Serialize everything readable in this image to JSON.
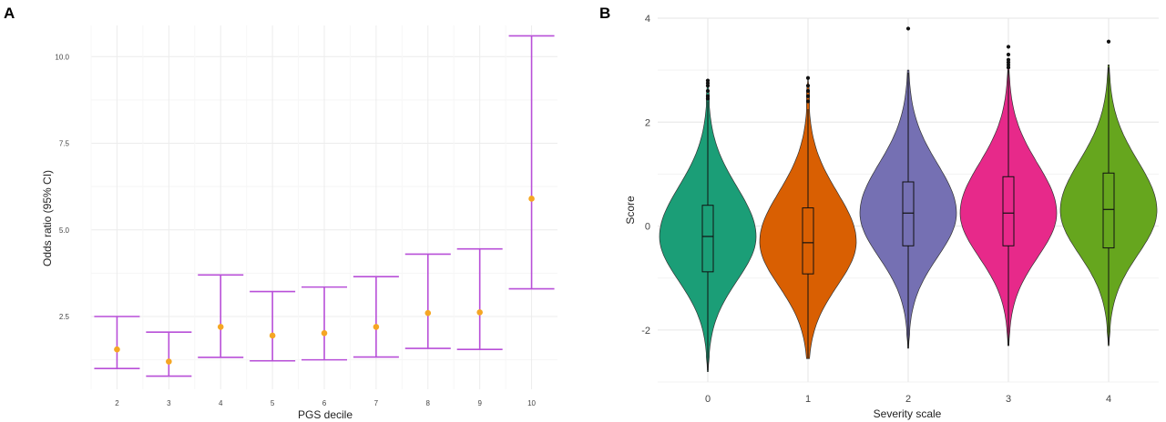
{
  "panels": {
    "a_label": "A",
    "b_label": "B"
  },
  "chart_data": [
    {
      "type": "errorbar",
      "panel": "A",
      "title": "",
      "xlabel": "PGS decile",
      "ylabel": "Odds ratio (95% CI)",
      "categories": [
        "2",
        "3",
        "4",
        "5",
        "6",
        "7",
        "8",
        "9",
        "10"
      ],
      "estimates": [
        1.55,
        1.2,
        2.2,
        1.95,
        2.02,
        2.2,
        2.6,
        2.62,
        5.9
      ],
      "ci_lower": [
        1.0,
        0.78,
        1.32,
        1.22,
        1.25,
        1.33,
        1.58,
        1.55,
        3.3
      ],
      "ci_upper": [
        2.5,
        2.05,
        3.7,
        3.22,
        3.35,
        3.65,
        4.3,
        4.45,
        10.6
      ],
      "yticks": [
        "2.5",
        "5.0",
        "7.5",
        "10.0"
      ],
      "ylim": [
        0.4,
        10.9
      ],
      "grid": true,
      "colors": {
        "errorbar": "#b84fd8",
        "point": "#f5a623"
      }
    },
    {
      "type": "violin",
      "panel": "B",
      "title": "",
      "xlabel": "Severity scale",
      "ylabel": "Score",
      "categories": [
        "0",
        "1",
        "2",
        "3",
        "4"
      ],
      "colors": [
        "#1b9e77",
        "#d95f02",
        "#7570b3",
        "#e7298a",
        "#66a61e"
      ],
      "ylim": [
        -3.0,
        4.0
      ],
      "yticks": [
        "-2",
        "0",
        "2",
        "4"
      ],
      "grid": true,
      "violins": [
        {
          "center": -0.2,
          "min": -2.8,
          "max": 2.8,
          "mode": -0.2
        },
        {
          "center": -0.3,
          "min": -2.55,
          "max": 2.85,
          "mode": -0.3
        },
        {
          "center": 0.25,
          "min": -2.35,
          "max": 3.0,
          "mode": 0.25
        },
        {
          "center": 0.25,
          "min": -2.3,
          "max": 3.05,
          "mode": 0.25
        },
        {
          "center": 0.3,
          "min": -2.3,
          "max": 3.1,
          "mode": 0.3
        }
      ],
      "boxplots": [
        {
          "q1": -0.88,
          "median": -0.2,
          "q3": 0.4,
          "whisker_low": -2.78,
          "whisker_high": 2.4
        },
        {
          "q1": -0.92,
          "median": -0.32,
          "q3": 0.35,
          "whisker_low": -2.55,
          "whisker_high": 2.25
        },
        {
          "q1": -0.38,
          "median": 0.25,
          "q3": 0.85,
          "whisker_low": -2.35,
          "whisker_high": 2.95
        },
        {
          "q1": -0.38,
          "median": 0.25,
          "q3": 0.95,
          "whisker_low": -2.3,
          "whisker_high": 3.0
        },
        {
          "q1": -0.42,
          "median": 0.32,
          "q3": 1.02,
          "whisker_low": -2.28,
          "whisker_high": 3.05
        }
      ],
      "outliers": [
        [
          2.45,
          2.5,
          2.6,
          2.7,
          2.75,
          2.8
        ],
        [
          2.4,
          2.5,
          2.6,
          2.7,
          2.85
        ],
        [
          3.8
        ],
        [
          3.05,
          3.1,
          3.15,
          3.2,
          3.3,
          3.45
        ],
        [
          3.55
        ]
      ]
    }
  ]
}
